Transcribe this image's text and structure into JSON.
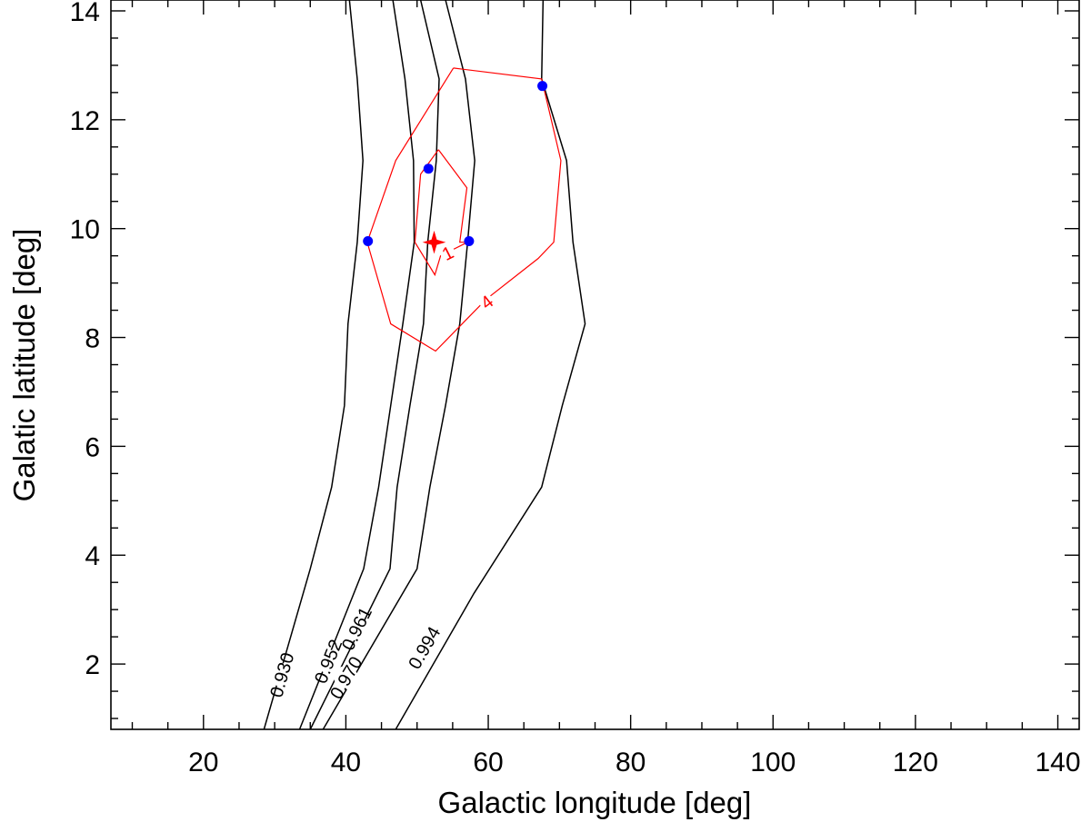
{
  "chart_data": {
    "type": "line",
    "title": "",
    "xlabel": "Galactic longitude [deg]",
    "ylabel": "Galatic latitude [deg]",
    "xlim": [
      7,
      143
    ],
    "ylim": [
      0.8,
      14.2
    ],
    "xticks": [
      "20",
      "40",
      "60",
      "80",
      "100",
      "120",
      "140"
    ],
    "yticks": [
      "2",
      "4",
      "6",
      "8",
      "10",
      "12",
      "14"
    ],
    "grid": false,
    "contour_series": [
      {
        "name": "0.930",
        "color": "#000000",
        "label_pos": [
          31,
          1.8
        ],
        "x": [
          40.5,
          41.6,
          42.4,
          41.6,
          40.3,
          39.8,
          38,
          35,
          28.5
        ],
        "y": [
          14.2,
          12.75,
          11.25,
          9.75,
          8.25,
          6.75,
          5.25,
          3.75,
          0.8
        ]
      },
      {
        "name": "0.952",
        "color": "#000000",
        "label_pos": [
          37.5,
          2.05
        ],
        "x": [
          46.6,
          48.3,
          49.5,
          49.6,
          48,
          46.3,
          44.6,
          42.5,
          33.5
        ],
        "y": [
          14.2,
          12.75,
          11.25,
          9.75,
          8.25,
          6.75,
          5.25,
          3.75,
          0.8
        ]
      },
      {
        "name": "0.961",
        "color": "#000000",
        "label_pos": [
          41.5,
          2.65
        ],
        "x": [
          50.5,
          53.1,
          52.7,
          51.5,
          50.9,
          49,
          47.2,
          46.2,
          35
        ],
        "y": [
          14.2,
          12.75,
          11.25,
          9.75,
          8.25,
          6.75,
          5.25,
          3.75,
          0.8
        ]
      },
      {
        "name": "0.970",
        "color": "#000000",
        "label_pos": [
          40,
          1.75
        ],
        "x": [
          54,
          56.8,
          58.1,
          57.1,
          56,
          54,
          51.8,
          50,
          36.8
        ],
        "y": [
          14.2,
          12.75,
          11.25,
          9.75,
          8.25,
          6.75,
          5.25,
          3.75,
          0.8
        ]
      },
      {
        "name": "0.994",
        "color": "#000000",
        "label_pos": [
          51,
          2.3
        ],
        "x": [
          67.7,
          67.5,
          71,
          71.9,
          73.6,
          70.4,
          67.5,
          58,
          47
        ],
        "y": [
          14.2,
          12.75,
          11.25,
          9.75,
          8.25,
          6.75,
          5.25,
          3.3,
          0.8
        ]
      }
    ],
    "red_contours": [
      {
        "name": "1",
        "color": "#ff0000",
        "label_pos": [
          54.3,
          9.55
        ],
        "x": [
          53,
          57,
          56,
          57.1,
          53.3,
          52.5,
          49.7,
          50.5,
          53
        ],
        "y": [
          11.45,
          10.75,
          9.75,
          9.75,
          9.5,
          9.15,
          9.75,
          11,
          11.45
        ]
      },
      {
        "name": "4",
        "color": "#ff0000",
        "label_pos": [
          59.8,
          8.65
        ],
        "x": [
          55.1,
          67.5,
          70.2,
          69.2,
          67,
          59.7,
          52.6,
          46.3,
          43,
          47,
          55.1
        ],
        "y": [
          12.95,
          12.75,
          11.25,
          9.75,
          9.45,
          8.7,
          7.75,
          8.25,
          9.75,
          11.25,
          12.95
        ]
      }
    ],
    "points": [
      {
        "x": 43.1,
        "y": 9.77
      },
      {
        "x": 51.6,
        "y": 11.1
      },
      {
        "x": 57.3,
        "y": 9.77
      },
      {
        "x": 67.6,
        "y": 12.62
      }
    ],
    "best_fit_marker": {
      "x": 52.4,
      "y": 9.75,
      "color": "#ff0000"
    }
  }
}
